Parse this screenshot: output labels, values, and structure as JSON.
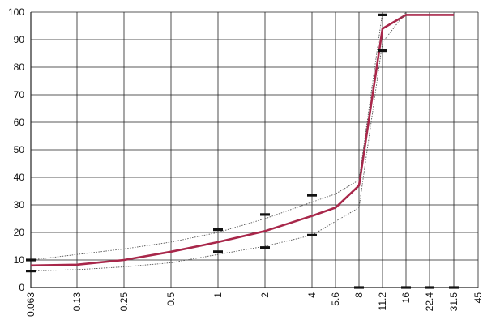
{
  "chart_data": {
    "type": "line",
    "title": "",
    "xlabel": "",
    "ylabel": "",
    "x_tick_labels": [
      "0.063",
      "0.13",
      "0.25",
      "0.5",
      "1",
      "2",
      "4",
      "5.6",
      "8",
      "11.2",
      "16",
      "22.4",
      "31.5",
      "45"
    ],
    "y_ticks": [
      0,
      10,
      20,
      30,
      40,
      50,
      60,
      70,
      80,
      90,
      100
    ],
    "ylim": [
      0,
      100
    ],
    "grid": true,
    "series": [
      {
        "role": "grading-curve",
        "color": "#a8274a",
        "values": [
          8,
          8.3,
          10,
          13,
          16.5,
          20.5,
          26,
          29,
          37,
          94,
          99,
          99,
          99,
          null
        ]
      },
      {
        "role": "upper-limit",
        "color": "#555555",
        "style": "dotted",
        "values": [
          10,
          12,
          14,
          16.5,
          20,
          25,
          31,
          34,
          39,
          100,
          100,
          100,
          100,
          null
        ]
      },
      {
        "role": "lower-limit",
        "color": "#555555",
        "style": "dotted",
        "values": [
          6,
          6.5,
          7.5,
          9,
          12,
          15,
          19,
          24,
          29,
          89,
          100,
          100,
          100,
          null
        ]
      },
      {
        "role": "limit-markers",
        "color": "#111111",
        "points": [
          {
            "x": "0.063",
            "y": 10
          },
          {
            "x": "0.063",
            "y": 6
          },
          {
            "x": "1",
            "y": 21
          },
          {
            "x": "1",
            "y": 13
          },
          {
            "x": "2",
            "y": 26.5
          },
          {
            "x": "2",
            "y": 14.5
          },
          {
            "x": "4",
            "y": 33.5
          },
          {
            "x": "4",
            "y": 19
          },
          {
            "x": "8",
            "y": 0
          },
          {
            "x": "11.2",
            "y": 99
          },
          {
            "x": "11.2",
            "y": 86
          },
          {
            "x": "16",
            "y": 0
          },
          {
            "x": "22.4",
            "y": 0
          },
          {
            "x": "31.5",
            "y": 0
          }
        ]
      }
    ]
  }
}
